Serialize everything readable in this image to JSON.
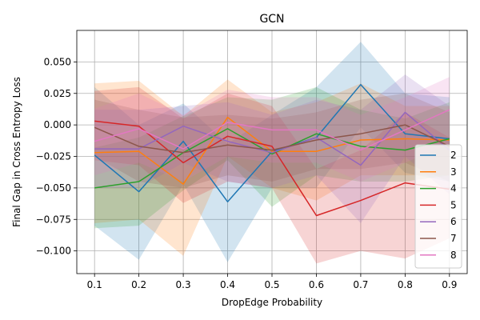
{
  "chart_data": {
    "type": "line",
    "title": "GCN",
    "xlabel": "DropEdge Probability",
    "ylabel": "Final Gap in Cross Entropy Loss",
    "x": [
      0.1,
      0.2,
      0.3,
      0.4,
      0.5,
      0.6,
      0.7,
      0.8,
      0.9
    ],
    "x_ticks": [
      "0.1",
      "0.2",
      "0.3",
      "0.4",
      "0.5",
      "0.6",
      "0.7",
      "0.8",
      "0.9"
    ],
    "y_ticks": [
      "−0.100",
      "−0.075",
      "−0.050",
      "−0.025",
      "0.000",
      "0.025",
      "0.050"
    ],
    "y_tick_values": [
      -0.1,
      -0.075,
      -0.05,
      -0.025,
      0.0,
      0.025,
      0.05
    ],
    "xlim": [
      0.06,
      0.94
    ],
    "ylim": [
      -0.118,
      0.075
    ],
    "grid": true,
    "legend_position": "lower-right",
    "series": [
      {
        "name": "2",
        "color": "#1f77b4",
        "values": [
          -0.024,
          -0.053,
          -0.013,
          -0.061,
          -0.021,
          -0.01,
          0.032,
          -0.007,
          -0.011
        ],
        "lower": [
          -0.08,
          -0.107,
          -0.047,
          -0.109,
          -0.05,
          -0.05,
          -0.002,
          -0.038,
          -0.045
        ],
        "upper": [
          0.03,
          0.0,
          0.017,
          -0.015,
          0.008,
          0.03,
          0.066,
          0.025,
          0.022
        ]
      },
      {
        "name": "3",
        "color": "#ff7f0e",
        "values": [
          -0.022,
          -0.021,
          -0.047,
          0.006,
          -0.021,
          -0.021,
          -0.012,
          -0.011,
          -0.012
        ],
        "lower": [
          -0.078,
          -0.075,
          -0.104,
          -0.025,
          -0.05,
          -0.06,
          -0.04,
          -0.04,
          -0.04
        ],
        "upper": [
          0.033,
          0.035,
          0.007,
          0.036,
          0.01,
          0.018,
          0.033,
          0.015,
          0.015
        ]
      },
      {
        "name": "4",
        "color": "#2ca02c",
        "values": [
          -0.05,
          -0.045,
          -0.022,
          -0.003,
          -0.023,
          -0.007,
          -0.017,
          -0.02,
          -0.011
        ],
        "lower": [
          -0.082,
          -0.08,
          -0.052,
          -0.028,
          -0.065,
          -0.04,
          -0.045,
          -0.045,
          -0.04
        ],
        "upper": [
          -0.018,
          -0.01,
          0.007,
          0.022,
          0.02,
          0.03,
          0.012,
          0.005,
          0.018
        ]
      },
      {
        "name": "5",
        "color": "#d62728",
        "values": [
          0.003,
          -0.001,
          -0.03,
          -0.009,
          -0.017,
          -0.072,
          -0.06,
          -0.046,
          -0.051
        ],
        "lower": [
          -0.028,
          -0.032,
          -0.062,
          -0.045,
          -0.05,
          -0.11,
          -0.1,
          -0.106,
          -0.09
        ],
        "upper": [
          0.027,
          0.03,
          0.005,
          0.025,
          0.015,
          -0.035,
          -0.02,
          0.01,
          -0.01
        ]
      },
      {
        "name": "6",
        "color": "#9467bd",
        "values": [
          -0.019,
          -0.019,
          -0.001,
          -0.013,
          -0.022,
          -0.01,
          -0.032,
          0.01,
          -0.02
        ],
        "lower": [
          -0.05,
          -0.05,
          -0.03,
          -0.045,
          -0.05,
          -0.04,
          -0.078,
          -0.025,
          -0.055
        ],
        "upper": [
          0.012,
          0.012,
          0.015,
          0.018,
          0.008,
          0.02,
          0.012,
          0.04,
          0.015
        ]
      },
      {
        "name": "7",
        "color": "#8c564b",
        "values": [
          -0.002,
          -0.017,
          -0.022,
          -0.016,
          -0.02,
          -0.012,
          -0.007,
          0.0,
          -0.017
        ],
        "lower": [
          -0.025,
          -0.045,
          -0.05,
          -0.04,
          -0.045,
          -0.035,
          -0.035,
          -0.03,
          -0.045
        ],
        "upper": [
          0.02,
          0.012,
          0.006,
          0.008,
          0.005,
          0.01,
          0.02,
          0.025,
          0.01
        ]
      },
      {
        "name": "8",
        "color": "#e377c2",
        "values": [
          -0.013,
          -0.003,
          -0.019,
          0.002,
          -0.004,
          -0.004,
          -0.02,
          -0.004,
          0.012
        ],
        "lower": [
          -0.04,
          -0.03,
          -0.045,
          -0.025,
          -0.03,
          -0.03,
          -0.045,
          -0.03,
          -0.015
        ],
        "upper": [
          0.013,
          0.025,
          0.008,
          0.028,
          0.022,
          0.022,
          0.008,
          0.022,
          0.038
        ]
      }
    ]
  }
}
